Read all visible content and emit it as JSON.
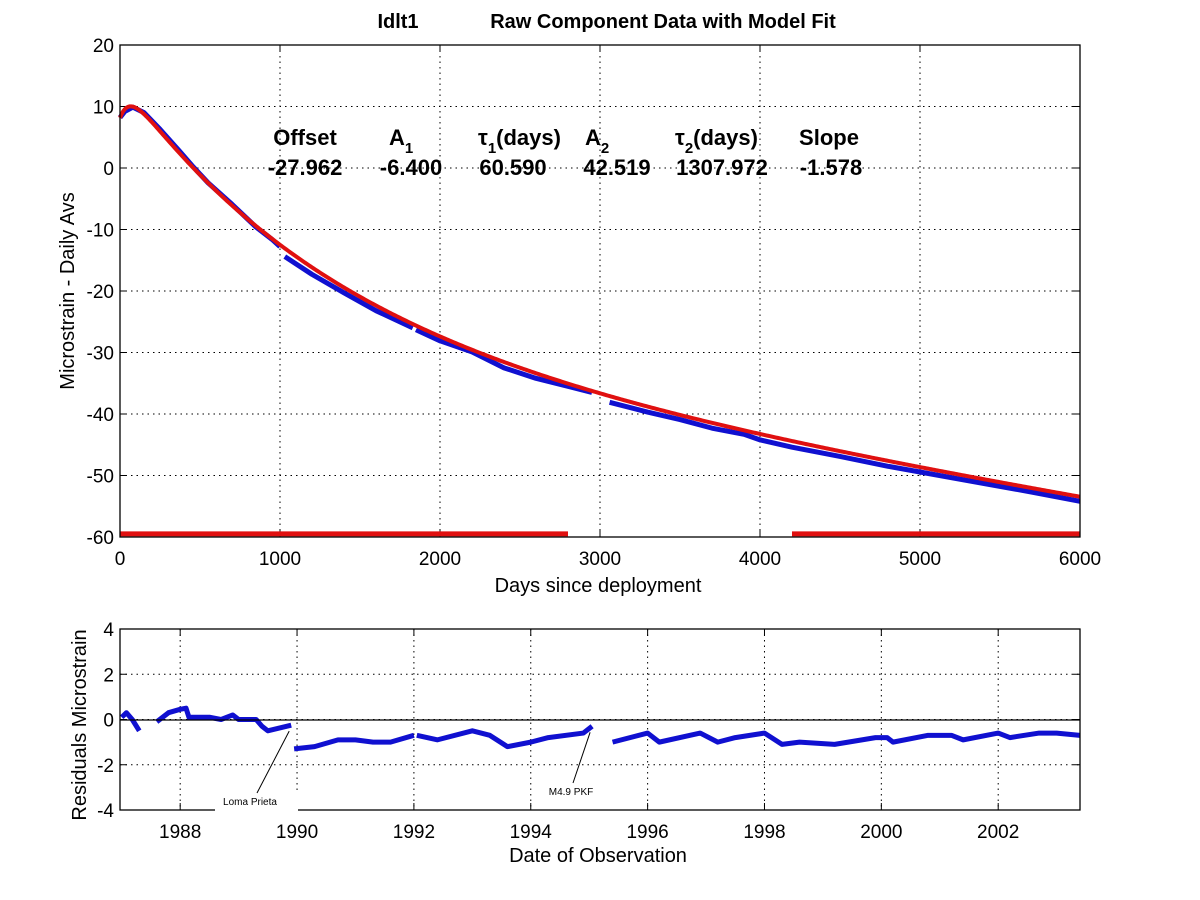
{
  "chart_data": [
    {
      "type": "line",
      "title_station": "Idlt1",
      "title": "Raw Component Data with Model Fit",
      "xlabel": "Days since deployment",
      "ylabel": "Microstrain - Daily Avs",
      "xlim": [
        0,
        6000
      ],
      "ylim": [
        -60,
        20
      ],
      "xticks": [
        "0",
        "1000",
        "2000",
        "3000",
        "4000",
        "5000",
        "6000"
      ],
      "yticks": [
        "20",
        "10",
        "0",
        "-10",
        "-20",
        "-30",
        "-40",
        "-50",
        "-60"
      ],
      "grid": true,
      "colors": {
        "raw": "#1010d0",
        "fit": "#e01010"
      },
      "fit_parameters": {
        "headers": {
          "offset": "Offset",
          "a1": "A",
          "a1_sub": "1",
          "tau1": "τ",
          "tau1_sub": "1",
          "tau1_unit": "(days)",
          "a2": "A",
          "a2_sub": "2",
          "tau2": "τ",
          "tau2_sub": "2",
          "tau2_unit": "(days)",
          "slope": "Slope"
        },
        "values": {
          "offset": "-27.962",
          "a1": "-6.400",
          "tau1": "60.590",
          "a2": "42.519",
          "tau2": "1307.972",
          "slope": "-1.578"
        }
      },
      "raw_series": [
        [
          [
            0,
            8.2
          ],
          [
            30,
            9.2
          ],
          [
            80,
            9.9
          ],
          [
            150,
            9.0
          ],
          [
            250,
            6.3
          ],
          [
            370,
            2.8
          ],
          [
            450,
            0.4
          ],
          [
            550,
            -2.4
          ],
          [
            700,
            -5.9
          ],
          [
            850,
            -9.6
          ],
          [
            950,
            -11.6
          ],
          [
            1000,
            -12.8
          ]
        ],
        [
          [
            1030,
            -14.4
          ],
          [
            1200,
            -17.3
          ],
          [
            1400,
            -20.3
          ],
          [
            1600,
            -23.2
          ],
          [
            1830,
            -26.0
          ]
        ],
        [
          [
            1850,
            -26.3
          ],
          [
            2000,
            -28.1
          ],
          [
            2200,
            -29.9
          ],
          [
            2400,
            -32.5
          ],
          [
            2600,
            -34.2
          ],
          [
            2800,
            -35.5
          ],
          [
            2950,
            -36.5
          ]
        ],
        [
          [
            3060,
            -38.1
          ],
          [
            3300,
            -39.7
          ],
          [
            3500,
            -40.9
          ],
          [
            3700,
            -42.3
          ],
          [
            3900,
            -43.3
          ],
          [
            4000,
            -44.2
          ],
          [
            4200,
            -45.4
          ],
          [
            4500,
            -46.9
          ],
          [
            4800,
            -48.5
          ],
          [
            5100,
            -49.9
          ],
          [
            5400,
            -51.3
          ],
          [
            5700,
            -52.7
          ],
          [
            6000,
            -54.2
          ]
        ]
      ],
      "data_coverage_bars": [
        [
          0,
          2800
        ],
        [
          4200,
          6000
        ]
      ],
      "data_coverage_level": -59.5
    },
    {
      "type": "line",
      "xlabel": "Date of Observation",
      "ylabel": "Residuals Microstrain",
      "xlim": [
        1986.97,
        2003.4
      ],
      "ylim": [
        -4,
        4
      ],
      "xticks": [
        "1988",
        "1990",
        "1992",
        "1994",
        "1996",
        "1998",
        "2000",
        "2002"
      ],
      "yticks": [
        "4",
        "2",
        "0",
        "-2",
        "-4"
      ],
      "grid": true,
      "residual_series": [
        [
          [
            1987.0,
            0.1
          ],
          [
            1987.08,
            0.3
          ],
          [
            1987.18,
            0.0
          ],
          [
            1987.3,
            -0.5
          ]
        ],
        [
          [
            1987.6,
            -0.1
          ],
          [
            1987.8,
            0.3
          ],
          [
            1988.0,
            0.45
          ],
          [
            1988.1,
            0.5
          ],
          [
            1988.15,
            0.1
          ],
          [
            1988.5,
            0.1
          ],
          [
            1988.7,
            0.0
          ],
          [
            1988.9,
            0.2
          ],
          [
            1989.0,
            0.0
          ],
          [
            1989.3,
            0.0
          ],
          [
            1989.4,
            -0.3
          ],
          [
            1989.5,
            -0.5
          ],
          [
            1989.9,
            -0.25
          ]
        ],
        [
          [
            1989.95,
            -1.3
          ],
          [
            1990.3,
            -1.2
          ],
          [
            1990.7,
            -0.9
          ],
          [
            1991.0,
            -0.9
          ],
          [
            1991.3,
            -1.0
          ],
          [
            1991.6,
            -1.0
          ],
          [
            1992.0,
            -0.7
          ]
        ],
        [
          [
            1992.05,
            -0.7
          ],
          [
            1992.4,
            -0.9
          ],
          [
            1993.0,
            -0.5
          ],
          [
            1993.3,
            -0.7
          ],
          [
            1993.6,
            -1.2
          ],
          [
            1994.0,
            -1.0
          ],
          [
            1994.3,
            -0.8
          ],
          [
            1994.9,
            -0.6
          ],
          [
            1995.05,
            -0.3
          ]
        ],
        [
          [
            1995.4,
            -1.0
          ],
          [
            1996.0,
            -0.6
          ],
          [
            1996.2,
            -1.0
          ],
          [
            1996.9,
            -0.6
          ],
          [
            1997.2,
            -1.0
          ],
          [
            1997.5,
            -0.8
          ],
          [
            1998.0,
            -0.6
          ],
          [
            1998.3,
            -1.1
          ],
          [
            1998.6,
            -1.0
          ],
          [
            1999.2,
            -1.1
          ],
          [
            1999.9,
            -0.8
          ],
          [
            2000.1,
            -0.8
          ],
          [
            2000.2,
            -1.0
          ],
          [
            2000.8,
            -0.7
          ],
          [
            2001.2,
            -0.7
          ],
          [
            2001.4,
            -0.9
          ],
          [
            2002.0,
            -0.6
          ],
          [
            2002.2,
            -0.8
          ],
          [
            2002.7,
            -0.6
          ],
          [
            2003.0,
            -0.6
          ],
          [
            2003.4,
            -0.7
          ]
        ]
      ],
      "annotations": [
        {
          "text": "Loma Prieta",
          "year": 1989.9,
          "value": -0.25
        },
        {
          "text": "M4.9 PKF",
          "year": 1995.05,
          "value": -0.3
        }
      ]
    }
  ]
}
